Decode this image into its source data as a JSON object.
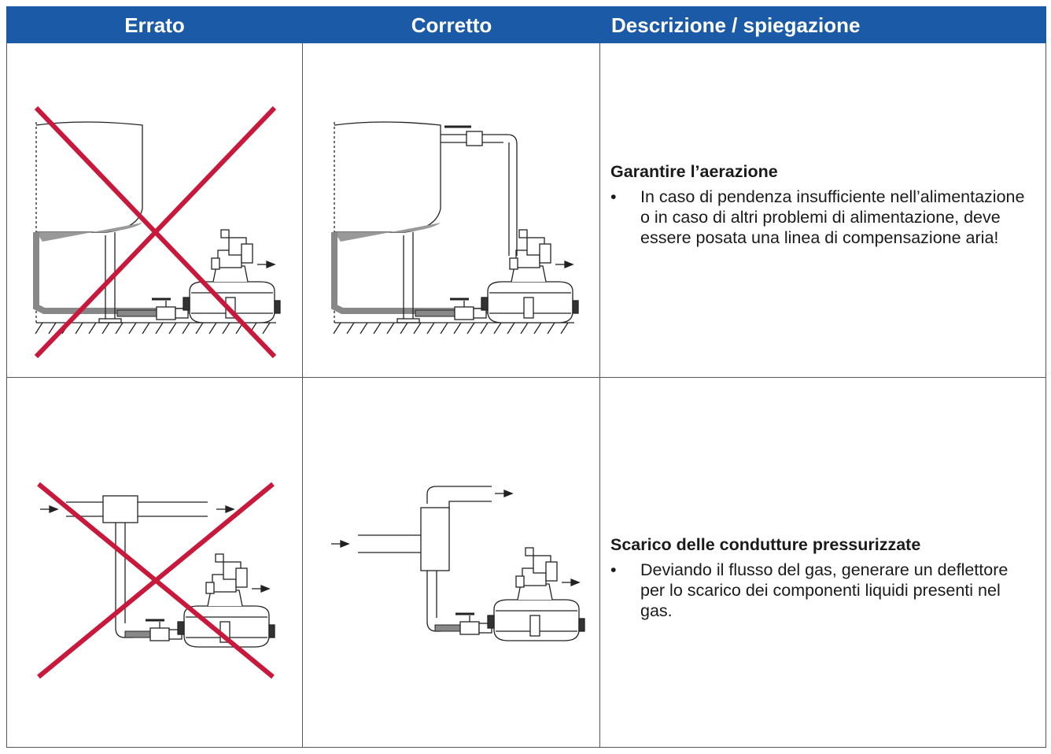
{
  "table": {
    "header": [
      "Errato",
      "Corretto",
      "Descrizione / spiegazione"
    ],
    "rows": [
      {
        "title": "Garantire l’aerazione",
        "bullet": "In caso di pendenza insufficiente nell’alimentazione o in caso di altri problemi di alimentazione, deve essere posata una linea di compensazione aria!"
      },
      {
        "title": "Scarico delle condutture pressurizzate",
        "bullet": "Deviando il flusso del gas, generare un deflettore per lo scarico dei componenti liquidi presenti nel gas."
      }
    ]
  }
}
